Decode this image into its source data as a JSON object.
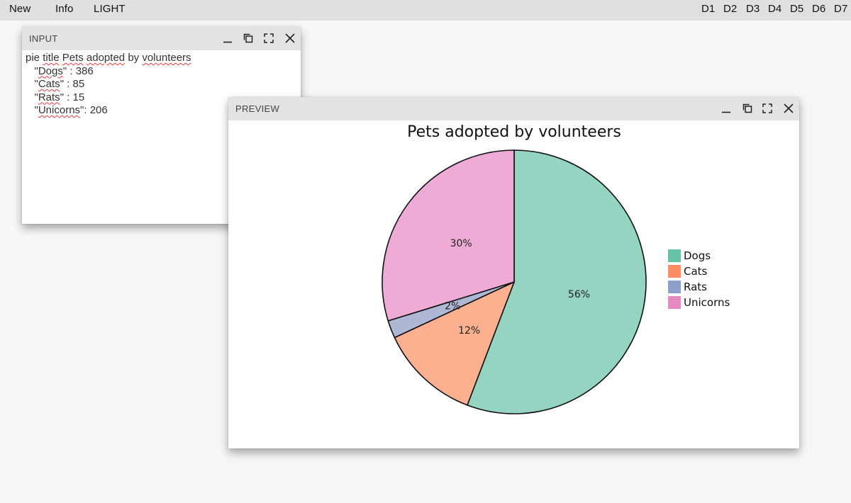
{
  "menu": {
    "new": "New",
    "info": "Info",
    "theme": "LIGHT"
  },
  "diagram_tabs": [
    "D1",
    "D2",
    "D3",
    "D4",
    "D5",
    "D6",
    "D7"
  ],
  "input_panel": {
    "title": "INPUT",
    "line1": {
      "a": "pie",
      "b": "title",
      "c": "Pets",
      "d": "adopted",
      "e": "by",
      "f": "volunteers"
    },
    "line2": {
      "pre": "\"",
      "key": "Dogs",
      "post": "\" : 386"
    },
    "line3": {
      "pre": "\"",
      "key": "Cats",
      "post": "\" : 85"
    },
    "line4": {
      "pre": "\"",
      "key": "Rats",
      "post": "\" : 15"
    },
    "line5": {
      "pre": "\"",
      "key": "Unicorns",
      "post": "\": 206"
    }
  },
  "preview_panel": {
    "title": "PREVIEW"
  },
  "chart_data": {
    "type": "pie",
    "title": "Pets adopted by volunteers",
    "slices": [
      {
        "label": "Dogs",
        "value": 386,
        "percent_label": "56%",
        "color": "#95d4c0"
      },
      {
        "label": "Cats",
        "value": 85,
        "percent_label": "12%",
        "color": "#fbb08f"
      },
      {
        "label": "Rats",
        "value": 15,
        "percent_label": "2%",
        "color": "#aeb8d4"
      },
      {
        "label": "Unicorns",
        "value": 206,
        "percent_label": "30%",
        "color": "#edabd6"
      }
    ],
    "legend": [
      {
        "label": "Dogs",
        "color": "#66c2a5"
      },
      {
        "label": "Cats",
        "color": "#fc8d62"
      },
      {
        "label": "Rats",
        "color": "#8da0cb"
      },
      {
        "label": "Unicorns",
        "color": "#e78ac3"
      }
    ],
    "legend_position": "right"
  }
}
